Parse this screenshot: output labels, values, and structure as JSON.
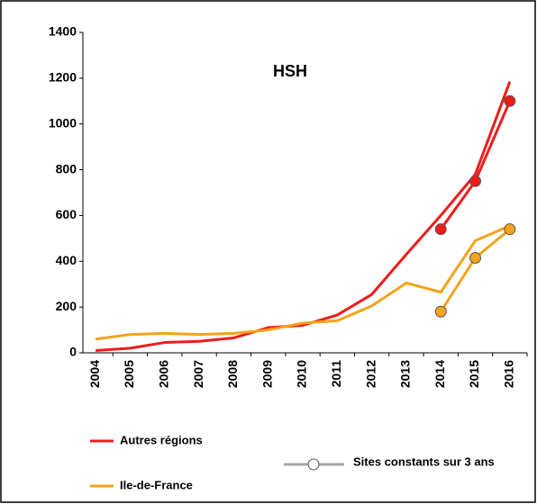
{
  "chart_data": {
    "type": "line",
    "title": "HSH",
    "categories": [
      "2004",
      "2005",
      "2006",
      "2007",
      "2008",
      "2009",
      "2010",
      "2011",
      "2012",
      "2013",
      "2014",
      "2015",
      "2016"
    ],
    "series": [
      {
        "name": "Autres régions",
        "color": "#ee1c1c",
        "values": [
          10,
          20,
          45,
          50,
          65,
          110,
          120,
          165,
          255,
          430,
          600,
          780,
          1185
        ],
        "constant_values": [
          null,
          null,
          null,
          null,
          null,
          null,
          null,
          null,
          null,
          null,
          540,
          750,
          1100
        ]
      },
      {
        "name": "Ile-de-France",
        "color": "#f5a31a",
        "values": [
          60,
          80,
          85,
          80,
          85,
          100,
          130,
          140,
          205,
          305,
          265,
          490,
          555
        ],
        "constant_values": [
          null,
          null,
          null,
          null,
          null,
          null,
          null,
          null,
          null,
          null,
          180,
          415,
          540
        ]
      }
    ],
    "constant_sites": {
      "name": "Sites constants sur 3 ans",
      "color": "#a6a6a6"
    },
    "ylim": [
      0,
      1400
    ],
    "yticks": [
      0,
      200,
      400,
      600,
      800,
      1000,
      1200,
      1400
    ],
    "grid": false
  }
}
